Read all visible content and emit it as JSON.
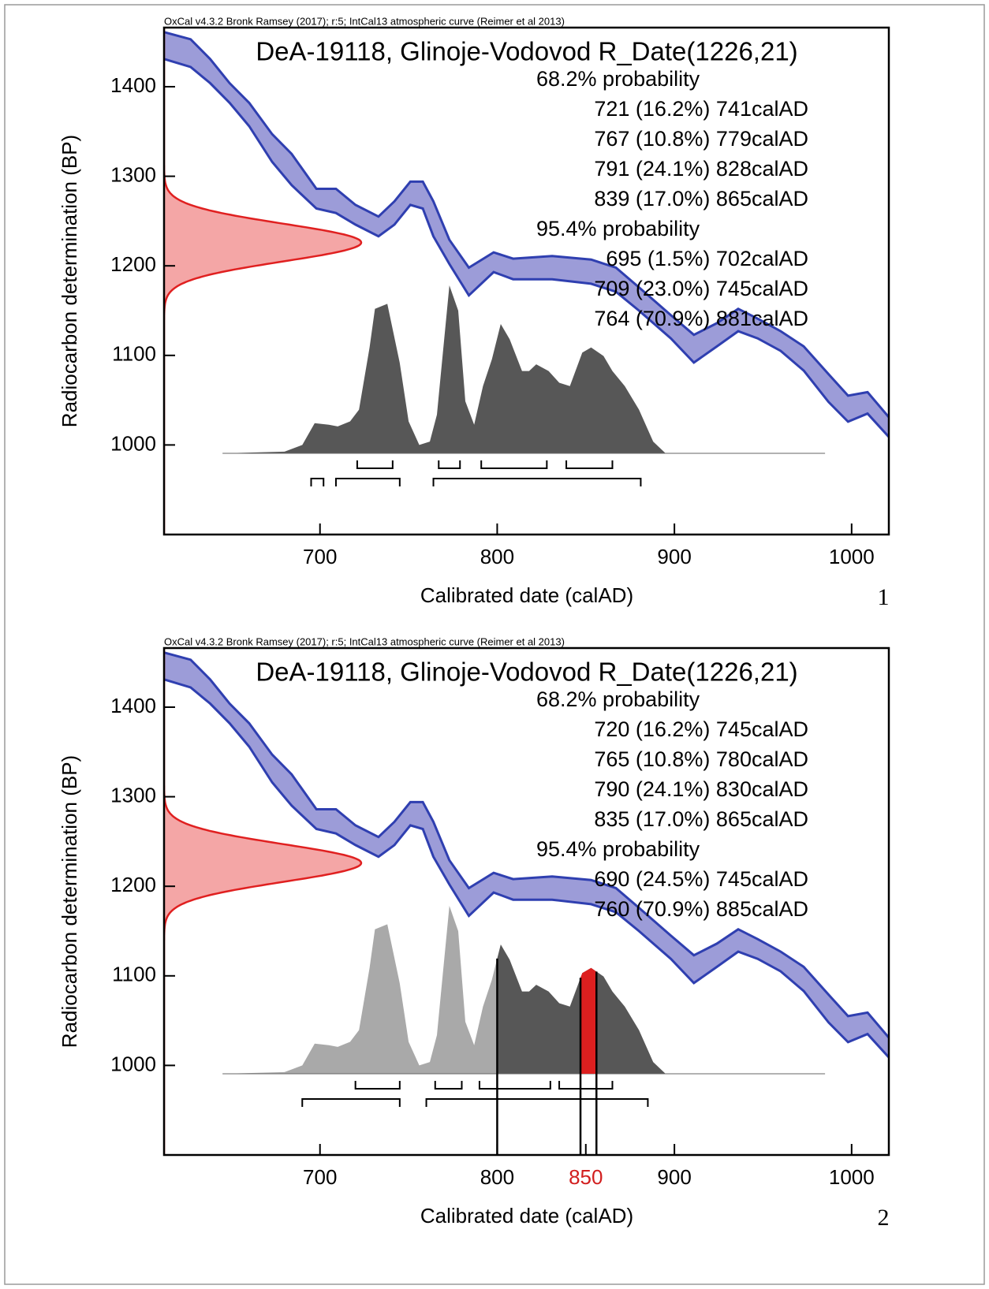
{
  "chart_data": [
    {
      "type": "calibration",
      "note": "OxCal v4.3.2 Bronk Ramsey (2017); r:5; IntCal13 atmospheric curve (Reimer et al 2013)",
      "title": "DeA-19118, Glinoje-Vodovod R_Date(1226,21)",
      "x_label": "Calibrated date (calAD)",
      "y_label": "Radiocarbon determination (BP)",
      "panel_label": "1",
      "xlim": [
        612,
        1021
      ],
      "ylim": [
        900,
        1466
      ],
      "xticks": [
        700,
        800,
        900,
        1000
      ],
      "xtick_colors": [
        "#000000",
        "#000000",
        "#000000",
        "#000000"
      ],
      "yticks": [
        1000,
        1100,
        1200,
        1300,
        1400
      ],
      "measurement": {
        "mean": 1226,
        "sd": 21,
        "color": "#e02020",
        "fill": "#f4a6a6"
      },
      "curve": {
        "x": [
          612,
          627,
          638,
          649,
          660,
          673,
          684,
          698,
          709,
          720,
          733,
          742,
          751,
          758,
          764,
          773,
          784,
          798,
          809,
          831,
          853,
          867,
          880,
          898,
          911,
          924,
          936,
          947,
          960,
          973,
          987,
          998,
          1009,
          1021
        ],
        "upper": [
          1461,
          1453,
          1431,
          1404,
          1382,
          1347,
          1325,
          1286,
          1286,
          1268,
          1255,
          1272,
          1294,
          1294,
          1272,
          1229,
          1198,
          1215,
          1208,
          1211,
          1207,
          1198,
          1176,
          1145,
          1123,
          1136,
          1152,
          1141,
          1127,
          1110,
          1079,
          1055,
          1059,
          1031
        ],
        "lower": [
          1431,
          1422,
          1404,
          1382,
          1356,
          1316,
          1290,
          1264,
          1259,
          1246,
          1233,
          1246,
          1268,
          1264,
          1233,
          1202,
          1167,
          1193,
          1185,
          1185,
          1180,
          1171,
          1150,
          1119,
          1092,
          1110,
          1127,
          1119,
          1105,
          1083,
          1048,
          1026,
          1035,
          1009
        ],
        "color": "#2f3fb0",
        "fill": "#9c9cd8"
      },
      "posterior": {
        "x": [
          645,
          680,
          690,
          697,
          705,
          710,
          717,
          722,
          728,
          731,
          738,
          745,
          750,
          756,
          762,
          766,
          768,
          773,
          778,
          782,
          787,
          792,
          797,
          802,
          807,
          814,
          818,
          822,
          829,
          835,
          841,
          848,
          853,
          860,
          865,
          872,
          880,
          888,
          895,
          985
        ],
        "values": [
          0,
          0.01,
          0.05,
          0.18,
          0.17,
          0.16,
          0.19,
          0.26,
          0.63,
          0.86,
          0.89,
          0.54,
          0.19,
          0.05,
          0.07,
          0.23,
          0.45,
          1,
          0.85,
          0.31,
          0.17,
          0.4,
          0.56,
          0.77,
          0.68,
          0.49,
          0.49,
          0.53,
          0.49,
          0.42,
          0.4,
          0.6,
          0.63,
          0.58,
          0.49,
          0.4,
          0.26,
          0.07,
          0,
          0
        ],
        "color": "#575757"
      },
      "intervals": [
        {
          "label": "68.2% probability",
          "ranges": [
            {
              "text": "721 (16.2%) 741calAD",
              "from": 721,
              "to": 741
            },
            {
              "text": "767 (10.8%) 779calAD",
              "from": 767,
              "to": 779
            },
            {
              "text": "791 (24.1%) 828calAD",
              "from": 791,
              "to": 828
            },
            {
              "text": "839 (17.0%) 865calAD",
              "from": 839,
              "to": 865
            }
          ]
        },
        {
          "label": "95.4% probability",
          "ranges": [
            {
              "text": "695 (1.5%) 702calAD",
              "from": 695,
              "to": 702
            },
            {
              "text": "709 (23.0%) 745calAD",
              "from": 709,
              "to": 745
            },
            {
              "text": "764 (70.9%) 881calAD",
              "from": 764,
              "to": 881
            }
          ]
        }
      ]
    },
    {
      "type": "calibration",
      "note": "OxCal v4.3.2 Bronk Ramsey (2017); r:5; IntCal13 atmospheric curve (Reimer et al 2013)",
      "title": "DeA-19118, Glinoje-Vodovod R_Date(1226,21)",
      "x_label": "Calibrated date (calAD)",
      "y_label": "Radiocarbon determination (BP)",
      "panel_label": "2",
      "xlim": [
        612,
        1021
      ],
      "ylim": [
        900,
        1466
      ],
      "xticks": [
        700,
        800,
        850,
        900,
        1000
      ],
      "xtick_colors": [
        "#000000",
        "#000000",
        "#d21f1f",
        "#000000",
        "#000000"
      ],
      "yticks": [
        1000,
        1100,
        1200,
        1300,
        1400
      ],
      "measurement": {
        "mean": 1226,
        "sd": 21,
        "color": "#e02020",
        "fill": "#f4a6a6"
      },
      "curve": {
        "x": [
          612,
          627,
          638,
          649,
          660,
          673,
          684,
          698,
          709,
          720,
          733,
          742,
          751,
          758,
          764,
          773,
          784,
          798,
          809,
          831,
          853,
          867,
          880,
          898,
          911,
          924,
          936,
          947,
          960,
          973,
          987,
          998,
          1009,
          1021
        ],
        "upper": [
          1461,
          1453,
          1431,
          1404,
          1382,
          1347,
          1325,
          1286,
          1286,
          1268,
          1255,
          1272,
          1294,
          1294,
          1272,
          1229,
          1198,
          1215,
          1208,
          1211,
          1207,
          1198,
          1176,
          1145,
          1123,
          1136,
          1152,
          1141,
          1127,
          1110,
          1079,
          1055,
          1059,
          1031
        ],
        "lower": [
          1431,
          1422,
          1404,
          1382,
          1356,
          1316,
          1290,
          1264,
          1259,
          1246,
          1233,
          1246,
          1268,
          1264,
          1233,
          1202,
          1167,
          1193,
          1185,
          1185,
          1180,
          1171,
          1150,
          1119,
          1092,
          1110,
          1127,
          1119,
          1105,
          1083,
          1048,
          1026,
          1035,
          1009
        ],
        "color": "#2f3fb0",
        "fill": "#9c9cd8"
      },
      "posterior": {
        "x": [
          645,
          680,
          690,
          697,
          705,
          710,
          717,
          722,
          728,
          731,
          738,
          745,
          750,
          756,
          762,
          766,
          768,
          773,
          778,
          782,
          787,
          792,
          797,
          802,
          807,
          814,
          818,
          822,
          829,
          835,
          841,
          848,
          853,
          860,
          865,
          872,
          880,
          888,
          895,
          985
        ],
        "values": [
          0,
          0.01,
          0.05,
          0.18,
          0.17,
          0.16,
          0.19,
          0.26,
          0.63,
          0.86,
          0.89,
          0.54,
          0.19,
          0.05,
          0.07,
          0.23,
          0.45,
          1,
          0.85,
          0.31,
          0.17,
          0.4,
          0.56,
          0.77,
          0.68,
          0.49,
          0.49,
          0.53,
          0.49,
          0.42,
          0.4,
          0.6,
          0.63,
          0.58,
          0.49,
          0.4,
          0.26,
          0.07,
          0,
          0
        ],
        "color": "#a9a9a9"
      },
      "highlight": {
        "from": 800,
        "color": "#575757"
      },
      "marker": {
        "from": 847,
        "to": 856,
        "color": "#dd1f1f"
      },
      "intervals": [
        {
          "label": "68.2% probability",
          "ranges": [
            {
              "text": "720 (16.2%) 745calAD",
              "from": 720,
              "to": 745
            },
            {
              "text": "765 (10.8%) 780calAD",
              "from": 765,
              "to": 780
            },
            {
              "text": "790 (24.1%) 830calAD",
              "from": 790,
              "to": 830
            },
            {
              "text": "835 (17.0%) 865calAD",
              "from": 835,
              "to": 865
            }
          ]
        },
        {
          "label": "95.4% probability",
          "ranges": [
            {
              "text": "690 (24.5%) 745calAD",
              "from": 690,
              "to": 745
            },
            {
              "text": "760 (70.9%) 885calAD",
              "from": 760,
              "to": 885
            }
          ]
        }
      ]
    }
  ]
}
